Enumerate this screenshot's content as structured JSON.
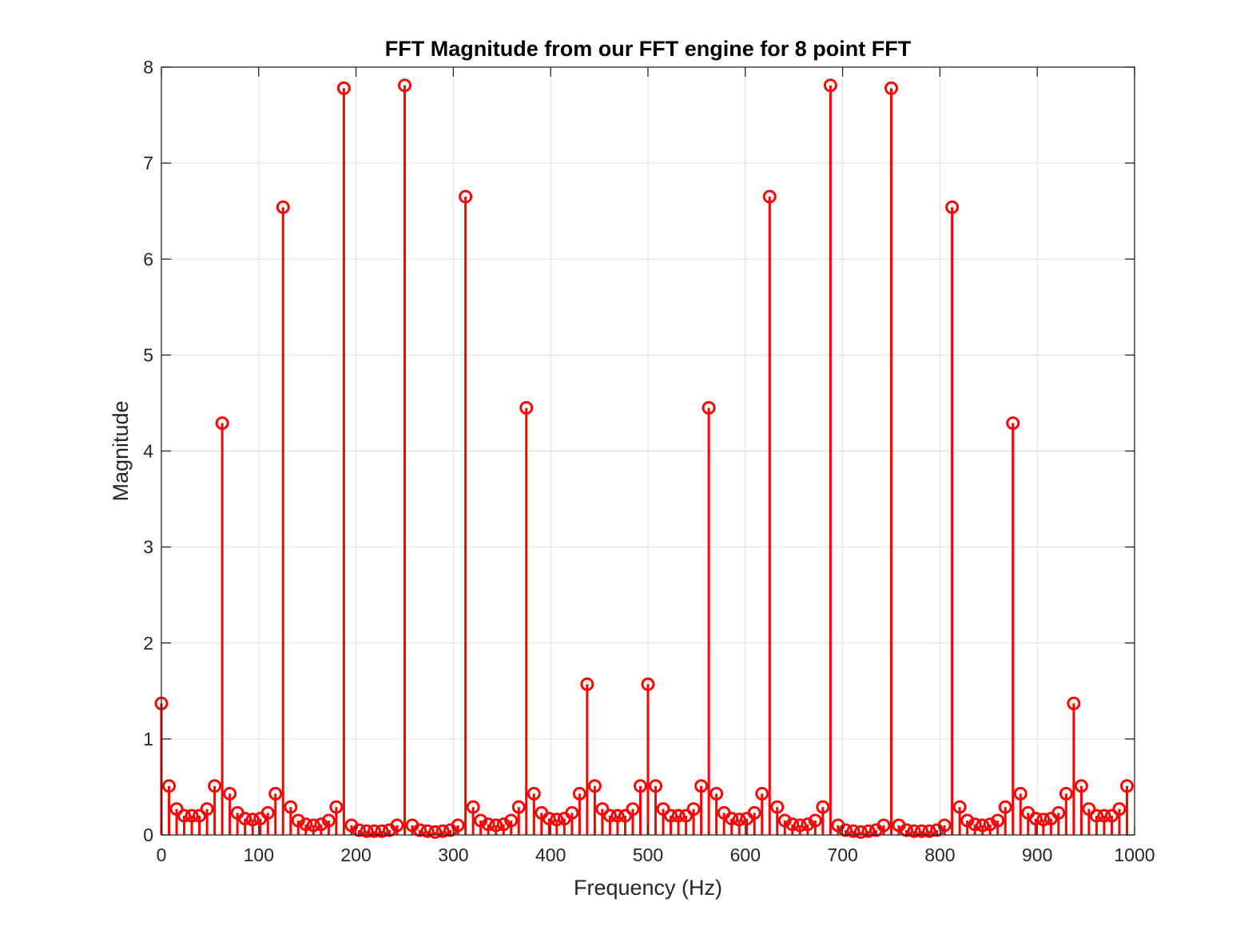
{
  "chart_data": {
    "type": "stem",
    "title": "FFT Magnitude from our FFT engine for 8 point FFT",
    "xlabel": "Frequency (Hz)",
    "ylabel": "Magnitude",
    "xlim": [
      0,
      1000
    ],
    "ylim": [
      0,
      8
    ],
    "xticks": [
      0,
      100,
      200,
      300,
      400,
      500,
      600,
      700,
      800,
      900,
      1000
    ],
    "yticks": [
      0,
      1,
      2,
      3,
      4,
      5,
      6,
      7,
      8
    ],
    "grid": true,
    "marker": "circle",
    "color": "#ff0000",
    "series": [
      {
        "x": [
          0,
          7.8125,
          15.625,
          23.4375,
          31.25,
          39.0625,
          46.875,
          54.6875,
          62.5,
          70.3125,
          78.125,
          85.9375,
          93.75,
          101.5625,
          109.375,
          117.1875,
          125,
          132.8125,
          140.625,
          148.4375,
          156.25,
          164.0625,
          171.875,
          179.6875,
          187.5,
          195.3125,
          203.125,
          210.9375,
          218.75,
          226.5625,
          234.375,
          242.1875,
          250,
          257.8125,
          265.625,
          273.4375,
          281.25,
          289.0625,
          296.875,
          304.6875,
          312.5,
          320.3125,
          328.125,
          335.9375,
          343.75,
          351.5625,
          359.375,
          367.1875,
          375,
          382.8125,
          390.625,
          398.4375,
          406.25,
          414.0625,
          421.875,
          429.6875,
          437.5,
          445.3125,
          453.125,
          460.9375,
          468.75,
          476.5625,
          484.375,
          492.1875,
          500,
          507.8125,
          515.625,
          523.4375,
          531.25,
          539.0625,
          546.875,
          554.6875,
          562.5,
          570.3125,
          578.125,
          585.9375,
          593.75,
          601.5625,
          609.375,
          617.1875,
          625,
          632.8125,
          640.625,
          648.4375,
          656.25,
          664.0625,
          671.875,
          679.6875,
          687.5,
          695.3125,
          703.125,
          710.9375,
          718.75,
          726.5625,
          734.375,
          742.1875,
          750,
          757.8125,
          765.625,
          773.4375,
          781.25,
          789.0625,
          796.875,
          804.6875,
          812.5,
          820.3125,
          828.125,
          835.9375,
          843.75,
          851.5625,
          859.375,
          867.1875,
          875,
          882.8125,
          890.625,
          898.4375,
          906.25,
          914.0625,
          921.875,
          929.6875,
          937.5,
          945.3125,
          953.125,
          960.9375,
          968.75,
          976.5625,
          984.375,
          992.1875
        ],
        "y": [
          1.37,
          0.51,
          0.27,
          0.2,
          0.2,
          0.2,
          0.27,
          0.51,
          4.29,
          0.43,
          0.23,
          0.17,
          0.16,
          0.17,
          0.23,
          0.43,
          6.54,
          0.29,
          0.15,
          0.11,
          0.1,
          0.11,
          0.15,
          0.29,
          7.78,
          0.1,
          0.05,
          0.04,
          0.04,
          0.04,
          0.05,
          0.1,
          7.81,
          0.1,
          0.05,
          0.04,
          0.03,
          0.04,
          0.05,
          0.1,
          6.65,
          0.29,
          0.15,
          0.11,
          0.1,
          0.11,
          0.15,
          0.29,
          4.45,
          0.43,
          0.23,
          0.17,
          0.16,
          0.17,
          0.23,
          0.43,
          1.57,
          0.51,
          0.27,
          0.2,
          0.2,
          0.2,
          0.27,
          0.51,
          1.57,
          0.51,
          0.27,
          0.2,
          0.2,
          0.2,
          0.27,
          0.51,
          4.45,
          0.43,
          0.23,
          0.17,
          0.16,
          0.17,
          0.23,
          0.43,
          6.65,
          0.29,
          0.15,
          0.11,
          0.1,
          0.11,
          0.15,
          0.29,
          7.81,
          0.1,
          0.05,
          0.04,
          0.03,
          0.04,
          0.05,
          0.1,
          7.78,
          0.1,
          0.05,
          0.04,
          0.04,
          0.04,
          0.05,
          0.1,
          6.54,
          0.29,
          0.15,
          0.11,
          0.1,
          0.11,
          0.15,
          0.29,
          4.29,
          0.43,
          0.23,
          0.17,
          0.16,
          0.17,
          0.23,
          0.43,
          1.37,
          0.51,
          0.27,
          0.2,
          0.2,
          0.2,
          0.27,
          0.51
        ]
      }
    ]
  }
}
